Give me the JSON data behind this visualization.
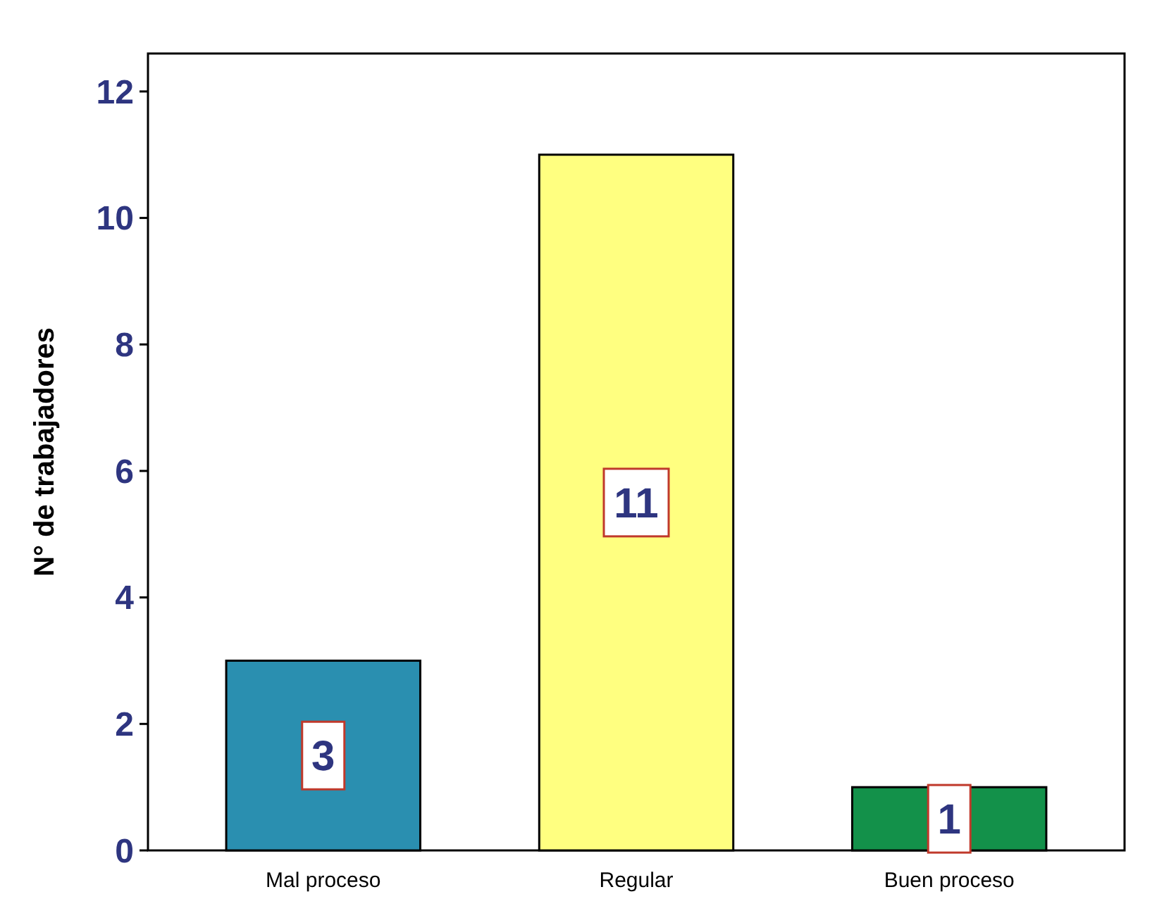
{
  "chart_data": {
    "type": "bar",
    "ylabel": "N° de trabajadores",
    "categories": [
      "Mal proceso",
      "Regular",
      "Buen proceso"
    ],
    "values": [
      3,
      11,
      1
    ],
    "colors": [
      "#2a8fb0",
      "#ffff80",
      "#13914a"
    ],
    "ylim": [
      0,
      12.6
    ],
    "yticks": [
      0,
      2,
      4,
      6,
      8,
      10,
      12
    ],
    "data_labels": true
  }
}
